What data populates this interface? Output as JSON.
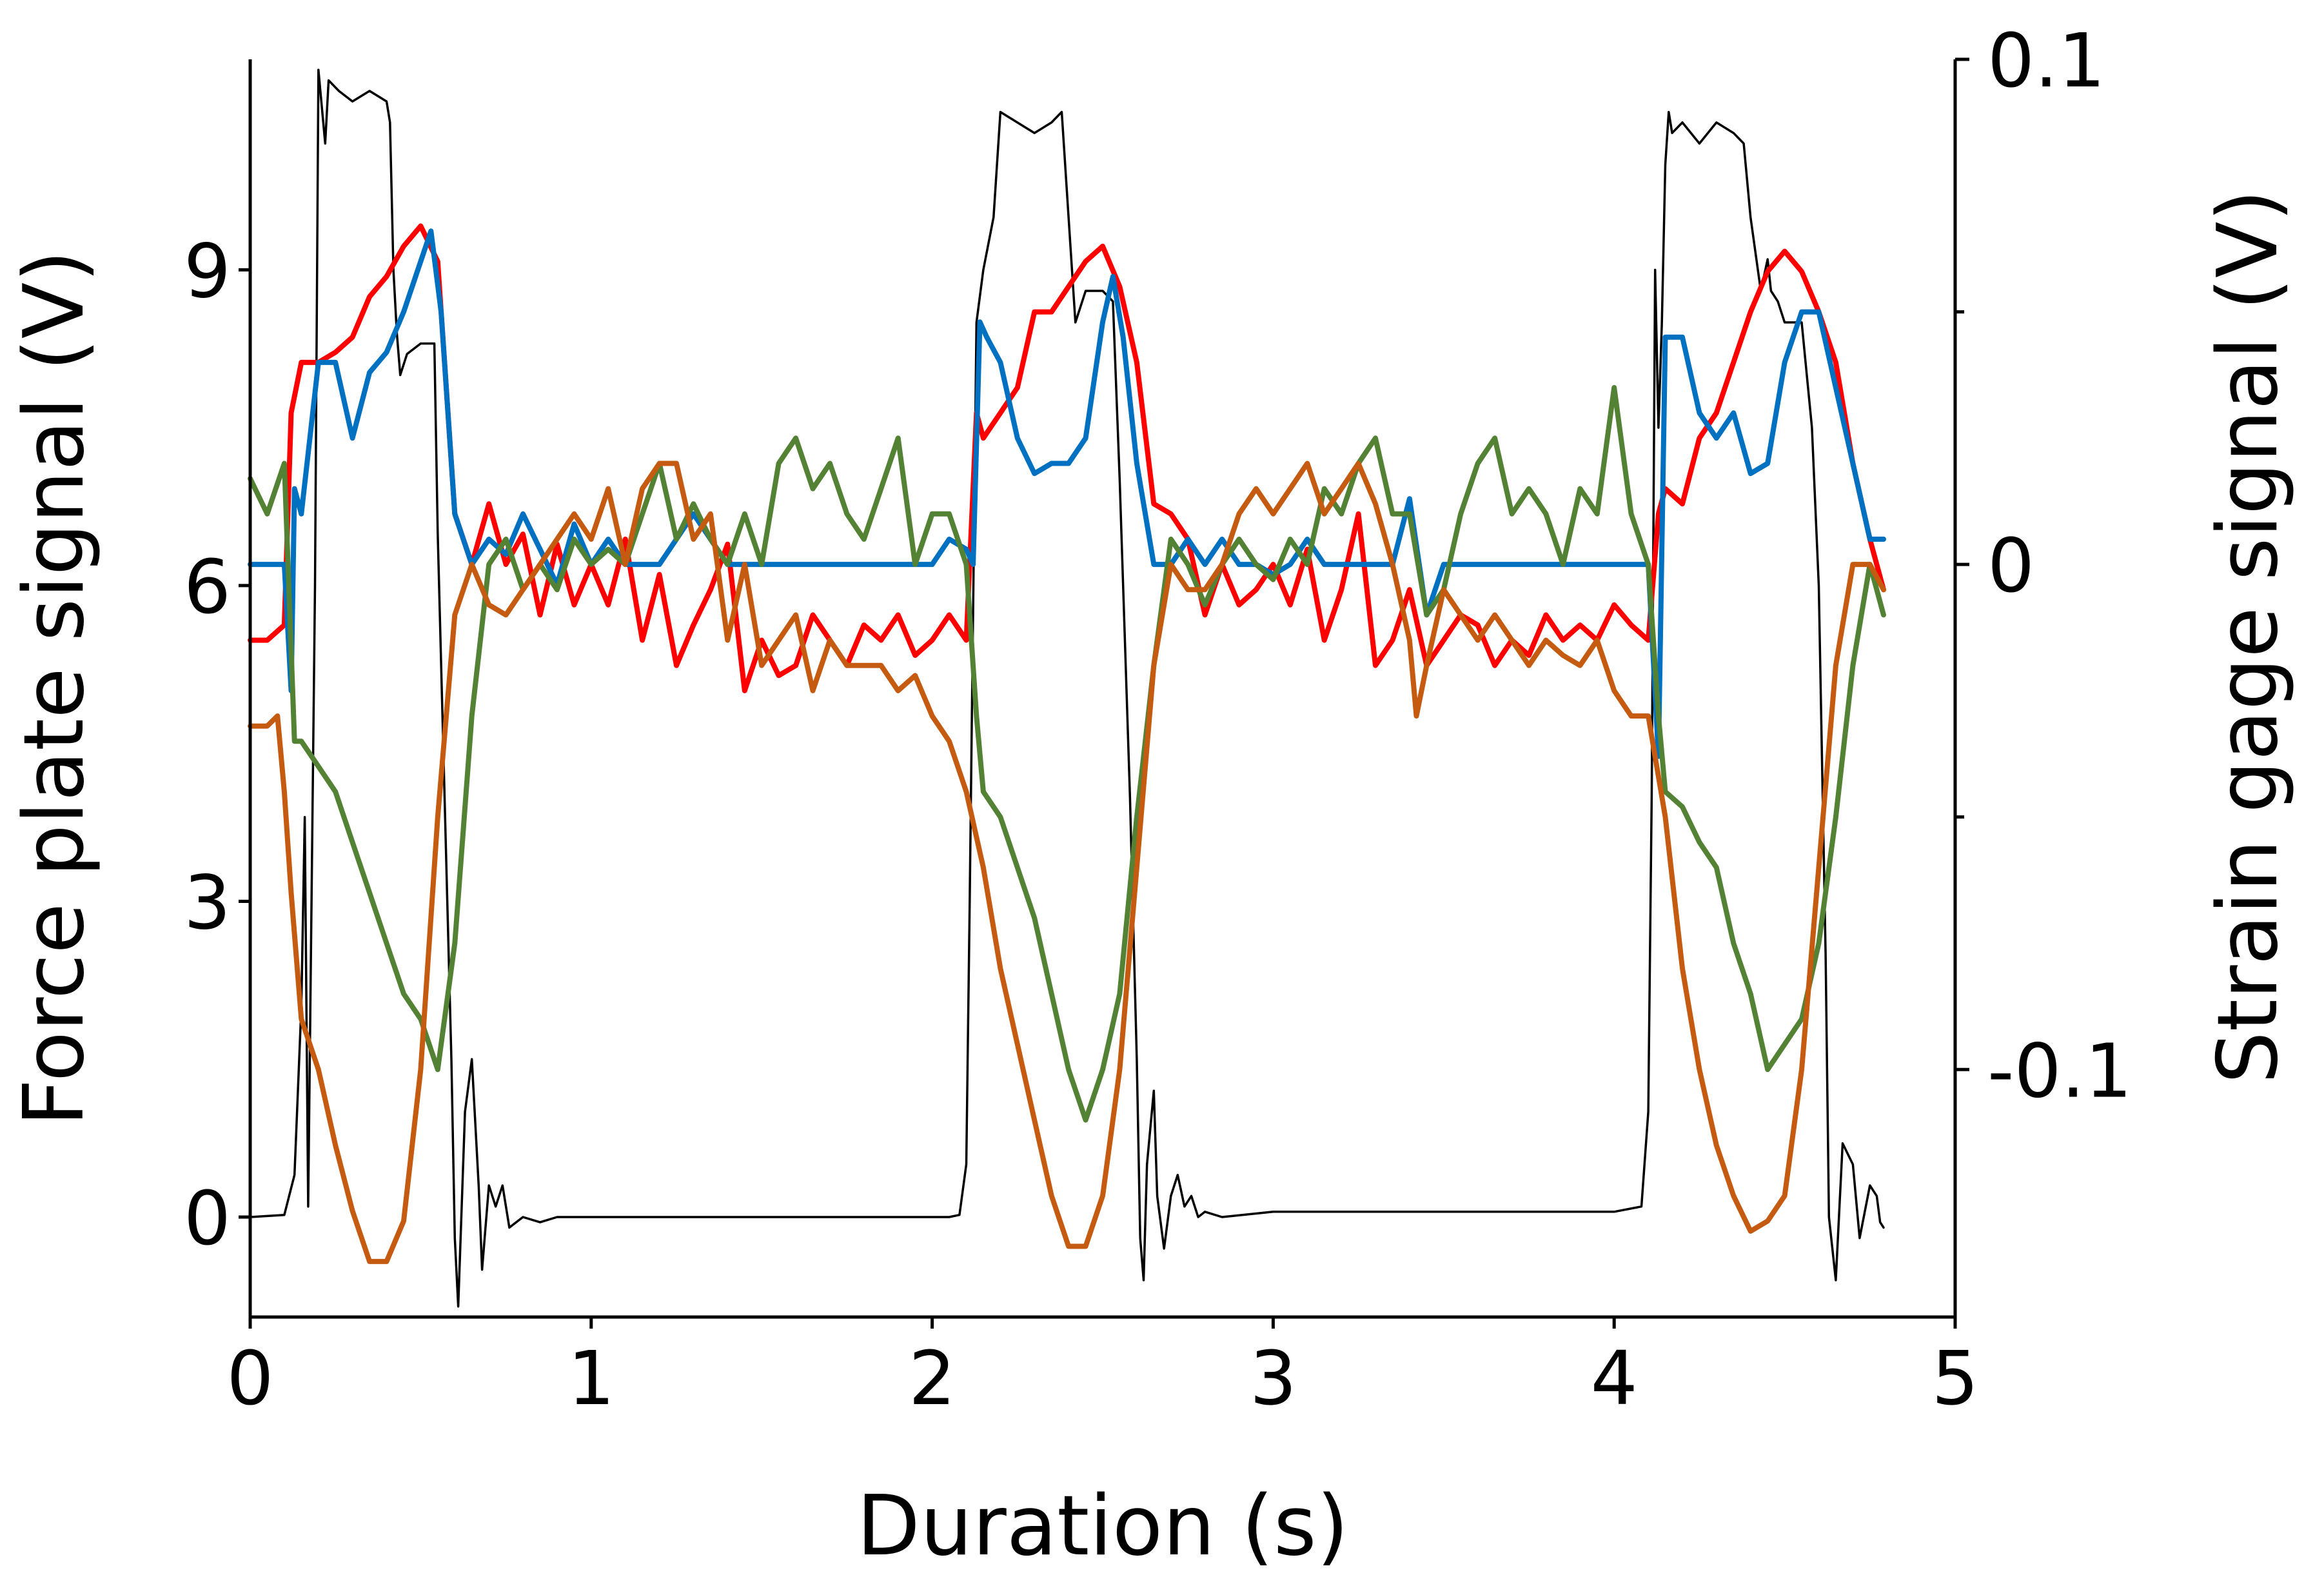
{
  "chart_data": {
    "type": "line",
    "title": "",
    "xlabel": "Duration (s)",
    "ylabel_left": "Force plate signal (V)",
    "ylabel_right": "Strain gage signal (V)",
    "xlim": [
      0,
      5
    ],
    "ylim_left": [
      -0.95,
      11
    ],
    "ylim_right": [
      -0.149,
      0.1
    ],
    "x_ticks": [
      "0",
      "1",
      "2",
      "3",
      "4",
      "5"
    ],
    "x_tick_values": [
      0,
      1,
      2,
      3,
      4,
      5
    ],
    "y_left_ticks": [
      "0",
      "3",
      "6",
      "9"
    ],
    "y_left_tick_values": [
      0,
      3,
      6,
      9
    ],
    "y_right_ticks": [
      "-0.1",
      "0",
      "0.1"
    ],
    "y_right_tick_values": [
      -0.1,
      0,
      0.1
    ],
    "y_right_minor_tick_values": [
      -0.05,
      0.05
    ],
    "grid": false,
    "legend": "none",
    "series": [
      {
        "name": "Force plate",
        "axis": "left",
        "color": "#000000",
        "x": [
          0,
          0.1,
          0.13,
          0.15,
          0.16,
          0.17,
          0.19,
          0.2,
          0.22,
          0.23,
          0.26,
          0.3,
          0.35,
          0.4,
          0.41,
          0.42,
          0.43,
          0.44,
          0.46,
          0.5,
          0.54,
          0.55,
          0.57,
          0.59,
          0.6,
          0.61,
          0.63,
          0.65,
          0.67,
          0.68,
          0.7,
          0.72,
          0.74,
          0.76,
          0.8,
          0.85,
          0.9,
          1.0,
          1.5,
          2.0,
          2.05,
          2.08,
          2.1,
          2.11,
          2.13,
          2.15,
          2.18,
          2.2,
          2.3,
          2.35,
          2.38,
          2.4,
          2.42,
          2.45,
          2.5,
          2.53,
          2.55,
          2.58,
          2.6,
          2.61,
          2.62,
          2.63,
          2.65,
          2.66,
          2.68,
          2.7,
          2.72,
          2.74,
          2.76,
          2.78,
          2.8,
          2.85,
          3.0,
          3.5,
          4.0,
          4.08,
          4.1,
          4.11,
          4.12,
          4.13,
          4.14,
          4.15,
          4.16,
          4.17,
          4.2,
          4.25,
          4.3,
          4.35,
          4.38,
          4.4,
          4.43,
          4.45,
          4.46,
          4.48,
          4.5,
          4.55,
          4.58,
          4.6,
          4.62,
          4.63,
          4.65,
          4.67,
          4.7,
          4.72,
          4.75,
          4.77,
          4.78,
          4.79
        ],
        "y": [
          0.0,
          0.02,
          0.4,
          2.0,
          3.8,
          0.1,
          6.0,
          10.9,
          10.2,
          10.8,
          10.7,
          10.6,
          10.7,
          10.6,
          10.4,
          9.0,
          8.4,
          8.0,
          8.2,
          8.3,
          8.3,
          6.5,
          4.0,
          1.5,
          -0.2,
          -0.85,
          1.0,
          1.5,
          0.3,
          -0.5,
          0.3,
          0.1,
          0.3,
          -0.1,
          0.0,
          -0.05,
          0.0,
          0.0,
          0.0,
          0.0,
          0.0,
          0.02,
          0.5,
          3.0,
          8.5,
          9.0,
          9.5,
          10.5,
          10.3,
          10.4,
          10.5,
          9.5,
          8.5,
          8.8,
          8.8,
          8.7,
          7.0,
          4.0,
          1.5,
          -0.2,
          -0.6,
          0.5,
          1.2,
          0.2,
          -0.3,
          0.2,
          0.4,
          0.1,
          0.2,
          0.0,
          0.05,
          0.0,
          0.05,
          0.05,
          0.05,
          0.1,
          1.0,
          4.0,
          9.0,
          7.5,
          8.5,
          10.0,
          10.5,
          10.3,
          10.4,
          10.2,
          10.4,
          10.3,
          10.2,
          9.5,
          8.8,
          9.1,
          8.8,
          8.7,
          8.5,
          8.5,
          7.5,
          6.0,
          2.5,
          0.0,
          -0.6,
          0.7,
          0.5,
          -0.2,
          0.3,
          0.2,
          -0.05,
          -0.1
        ]
      },
      {
        "name": "Strain gage (red)",
        "axis": "right",
        "color": "#ff0000",
        "x": [
          0,
          0.05,
          0.1,
          0.12,
          0.15,
          0.2,
          0.25,
          0.3,
          0.35,
          0.4,
          0.45,
          0.5,
          0.55,
          0.6,
          0.65,
          0.7,
          0.75,
          0.8,
          0.85,
          0.9,
          0.95,
          1.0,
          1.05,
          1.1,
          1.15,
          1.2,
          1.25,
          1.3,
          1.35,
          1.4,
          1.45,
          1.5,
          1.55,
          1.6,
          1.65,
          1.7,
          1.75,
          1.8,
          1.85,
          1.9,
          1.95,
          2.0,
          2.05,
          2.1,
          2.13,
          2.15,
          2.2,
          2.25,
          2.3,
          2.35,
          2.4,
          2.45,
          2.5,
          2.55,
          2.6,
          2.65,
          2.7,
          2.75,
          2.8,
          2.85,
          2.9,
          2.95,
          3.0,
          3.05,
          3.1,
          3.15,
          3.2,
          3.25,
          3.3,
          3.35,
          3.4,
          3.45,
          3.5,
          3.55,
          3.6,
          3.65,
          3.7,
          3.75,
          3.8,
          3.85,
          3.9,
          3.95,
          4.0,
          4.05,
          4.1,
          4.13,
          4.15,
          4.2,
          4.25,
          4.3,
          4.35,
          4.4,
          4.45,
          4.5,
          4.55,
          4.6,
          4.65,
          4.7,
          4.75,
          4.79
        ],
        "y": [
          -0.015,
          -0.015,
          -0.012,
          0.03,
          0.04,
          0.04,
          0.042,
          0.045,
          0.053,
          0.057,
          0.063,
          0.067,
          0.06,
          0.01,
          0.0,
          0.012,
          0.0,
          0.006,
          -0.01,
          0.004,
          -0.008,
          0.0,
          -0.008,
          0.005,
          -0.015,
          -0.002,
          -0.02,
          -0.012,
          -0.005,
          0.004,
          -0.025,
          -0.015,
          -0.022,
          -0.02,
          -0.01,
          -0.015,
          -0.02,
          -0.012,
          -0.015,
          -0.01,
          -0.018,
          -0.015,
          -0.01,
          -0.015,
          0.03,
          0.025,
          0.03,
          0.035,
          0.05,
          0.05,
          0.055,
          0.06,
          0.063,
          0.055,
          0.04,
          0.012,
          0.01,
          0.005,
          -0.01,
          0.0,
          -0.008,
          -0.005,
          0.0,
          -0.008,
          0.003,
          -0.015,
          -0.005,
          0.01,
          -0.02,
          -0.015,
          -0.005,
          -0.02,
          -0.015,
          -0.01,
          -0.012,
          -0.02,
          -0.015,
          -0.018,
          -0.01,
          -0.015,
          -0.012,
          -0.015,
          -0.008,
          -0.012,
          -0.015,
          0.01,
          0.015,
          0.012,
          0.025,
          0.03,
          0.04,
          0.05,
          0.058,
          0.062,
          0.058,
          0.05,
          0.04,
          0.02,
          0.005,
          -0.005
        ]
      },
      {
        "name": "Strain gage (blue)",
        "axis": "right",
        "color": "#0070c0",
        "x": [
          0,
          0.1,
          0.12,
          0.13,
          0.15,
          0.2,
          0.25,
          0.3,
          0.35,
          0.4,
          0.45,
          0.5,
          0.53,
          0.56,
          0.6,
          0.65,
          0.7,
          0.75,
          0.8,
          0.85,
          0.9,
          0.95,
          1.0,
          1.05,
          1.1,
          1.2,
          1.3,
          1.4,
          1.5,
          1.6,
          1.7,
          1.8,
          1.9,
          2.0,
          2.05,
          2.1,
          2.12,
          2.14,
          2.16,
          2.2,
          2.25,
          2.3,
          2.35,
          2.4,
          2.45,
          2.5,
          2.53,
          2.56,
          2.6,
          2.65,
          2.7,
          2.75,
          2.8,
          2.85,
          2.9,
          2.95,
          3.0,
          3.05,
          3.1,
          3.15,
          3.2,
          3.25,
          3.3,
          3.35,
          3.4,
          3.45,
          3.5,
          3.55,
          3.6,
          3.7,
          3.8,
          3.9,
          4.0,
          4.05,
          4.1,
          4.13,
          4.15,
          4.2,
          4.25,
          4.3,
          4.35,
          4.4,
          4.45,
          4.5,
          4.55,
          4.6,
          4.65,
          4.7,
          4.75,
          4.79
        ],
        "y": [
          0.0,
          0.0,
          -0.025,
          0.015,
          0.01,
          0.04,
          0.04,
          0.025,
          0.038,
          0.042,
          0.05,
          0.06,
          0.066,
          0.05,
          0.01,
          0.0,
          0.005,
          0.002,
          0.01,
          0.003,
          -0.004,
          0.008,
          0.0,
          0.005,
          0.0,
          0.0,
          0.01,
          0.0,
          0.0,
          0.0,
          0.0,
          0.0,
          0.0,
          0.0,
          0.005,
          0.003,
          0.0,
          0.048,
          0.045,
          0.04,
          0.025,
          0.018,
          0.02,
          0.02,
          0.025,
          0.048,
          0.057,
          0.045,
          0.02,
          0.0,
          0.0,
          0.005,
          0.0,
          0.005,
          0.0,
          0.0,
          -0.002,
          0.0,
          0.005,
          0.0,
          0.0,
          0.0,
          0.0,
          0.0,
          0.013,
          -0.01,
          0.0,
          0.0,
          0.0,
          0.0,
          0.0,
          0.0,
          0.0,
          0.0,
          0.0,
          -0.038,
          0.045,
          0.045,
          0.03,
          0.025,
          0.03,
          0.018,
          0.02,
          0.04,
          0.05,
          0.05,
          0.035,
          0.02,
          0.005,
          0.005
        ]
      },
      {
        "name": "Strain gage (green)",
        "axis": "right",
        "color": "#548235",
        "x": [
          0,
          0.05,
          0.1,
          0.13,
          0.15,
          0.2,
          0.25,
          0.3,
          0.35,
          0.4,
          0.45,
          0.5,
          0.55,
          0.6,
          0.65,
          0.7,
          0.75,
          0.8,
          0.85,
          0.9,
          0.95,
          1.0,
          1.05,
          1.1,
          1.15,
          1.2,
          1.25,
          1.3,
          1.35,
          1.4,
          1.45,
          1.5,
          1.55,
          1.6,
          1.65,
          1.7,
          1.75,
          1.8,
          1.85,
          1.9,
          1.95,
          2.0,
          2.05,
          2.1,
          2.13,
          2.15,
          2.2,
          2.25,
          2.3,
          2.35,
          2.4,
          2.45,
          2.5,
          2.55,
          2.6,
          2.65,
          2.7,
          2.75,
          2.8,
          2.85,
          2.9,
          2.95,
          3.0,
          3.05,
          3.1,
          3.15,
          3.2,
          3.25,
          3.3,
          3.35,
          3.4,
          3.45,
          3.5,
          3.55,
          3.6,
          3.65,
          3.7,
          3.75,
          3.8,
          3.85,
          3.9,
          3.95,
          4.0,
          4.05,
          4.1,
          4.13,
          4.15,
          4.2,
          4.25,
          4.3,
          4.35,
          4.4,
          4.45,
          4.5,
          4.55,
          4.6,
          4.65,
          4.7,
          4.75,
          4.79
        ],
        "y": [
          0.017,
          0.01,
          0.02,
          -0.035,
          -0.035,
          -0.04,
          -0.045,
          -0.055,
          -0.065,
          -0.075,
          -0.085,
          -0.09,
          -0.1,
          -0.075,
          -0.03,
          0.0,
          0.005,
          -0.005,
          0.0,
          -0.005,
          0.005,
          0.0,
          0.003,
          0.0,
          0.01,
          0.02,
          0.005,
          0.012,
          0.005,
          0.0,
          0.01,
          0.0,
          0.02,
          0.025,
          0.015,
          0.02,
          0.01,
          0.005,
          0.015,
          0.025,
          0.0,
          0.01,
          0.01,
          0.0,
          -0.03,
          -0.045,
          -0.05,
          -0.06,
          -0.07,
          -0.085,
          -0.1,
          -0.11,
          -0.1,
          -0.085,
          -0.05,
          -0.02,
          0.005,
          0.0,
          -0.008,
          0.0,
          0.005,
          0.0,
          -0.003,
          0.005,
          0.0,
          0.015,
          0.01,
          0.02,
          0.025,
          0.01,
          0.01,
          -0.01,
          -0.005,
          0.01,
          0.02,
          0.025,
          0.01,
          0.015,
          0.01,
          0.0,
          0.015,
          0.01,
          0.035,
          0.01,
          0.0,
          -0.03,
          -0.045,
          -0.048,
          -0.055,
          -0.06,
          -0.075,
          -0.085,
          -0.1,
          -0.095,
          -0.09,
          -0.075,
          -0.05,
          -0.02,
          0.0,
          -0.01
        ]
      },
      {
        "name": "Strain gage (orange)",
        "axis": "right",
        "color": "#c55a11",
        "x": [
          0,
          0.05,
          0.08,
          0.1,
          0.12,
          0.15,
          0.2,
          0.25,
          0.3,
          0.35,
          0.4,
          0.45,
          0.5,
          0.55,
          0.6,
          0.65,
          0.7,
          0.75,
          0.8,
          0.85,
          0.9,
          0.95,
          1.0,
          1.05,
          1.1,
          1.15,
          1.2,
          1.25,
          1.3,
          1.35,
          1.4,
          1.45,
          1.5,
          1.55,
          1.6,
          1.65,
          1.7,
          1.75,
          1.8,
          1.85,
          1.9,
          1.95,
          2.0,
          2.05,
          2.1,
          2.15,
          2.2,
          2.25,
          2.3,
          2.35,
          2.4,
          2.45,
          2.5,
          2.55,
          2.6,
          2.65,
          2.7,
          2.75,
          2.8,
          2.85,
          2.9,
          2.95,
          3.0,
          3.05,
          3.1,
          3.15,
          3.2,
          3.25,
          3.3,
          3.35,
          3.4,
          3.42,
          3.45,
          3.5,
          3.55,
          3.6,
          3.65,
          3.7,
          3.75,
          3.8,
          3.85,
          3.9,
          3.95,
          4.0,
          4.05,
          4.1,
          4.15,
          4.2,
          4.25,
          4.3,
          4.35,
          4.4,
          4.45,
          4.5,
          4.55,
          4.6,
          4.65,
          4.7,
          4.75,
          4.79
        ],
        "y": [
          -0.032,
          -0.032,
          -0.03,
          -0.045,
          -0.065,
          -0.09,
          -0.1,
          -0.115,
          -0.128,
          -0.138,
          -0.138,
          -0.13,
          -0.1,
          -0.05,
          -0.01,
          0.0,
          -0.008,
          -0.01,
          -0.005,
          0.0,
          0.005,
          0.01,
          0.005,
          0.015,
          0.0,
          0.015,
          0.02,
          0.02,
          0.005,
          0.01,
          -0.015,
          0.0,
          -0.02,
          -0.015,
          -0.01,
          -0.025,
          -0.015,
          -0.02,
          -0.02,
          -0.02,
          -0.025,
          -0.022,
          -0.03,
          -0.035,
          -0.045,
          -0.06,
          -0.08,
          -0.095,
          -0.11,
          -0.125,
          -0.135,
          -0.135,
          -0.125,
          -0.1,
          -0.06,
          -0.02,
          0.0,
          -0.005,
          -0.005,
          0.0,
          0.01,
          0.015,
          0.01,
          0.015,
          0.02,
          0.01,
          0.015,
          0.02,
          0.012,
          0.0,
          -0.015,
          -0.03,
          -0.02,
          -0.005,
          -0.01,
          -0.015,
          -0.01,
          -0.015,
          -0.02,
          -0.015,
          -0.018,
          -0.02,
          -0.015,
          -0.025,
          -0.03,
          -0.03,
          -0.05,
          -0.08,
          -0.1,
          -0.115,
          -0.125,
          -0.132,
          -0.13,
          -0.125,
          -0.1,
          -0.06,
          -0.02,
          0.0,
          0.0,
          -0.005
        ]
      }
    ]
  }
}
